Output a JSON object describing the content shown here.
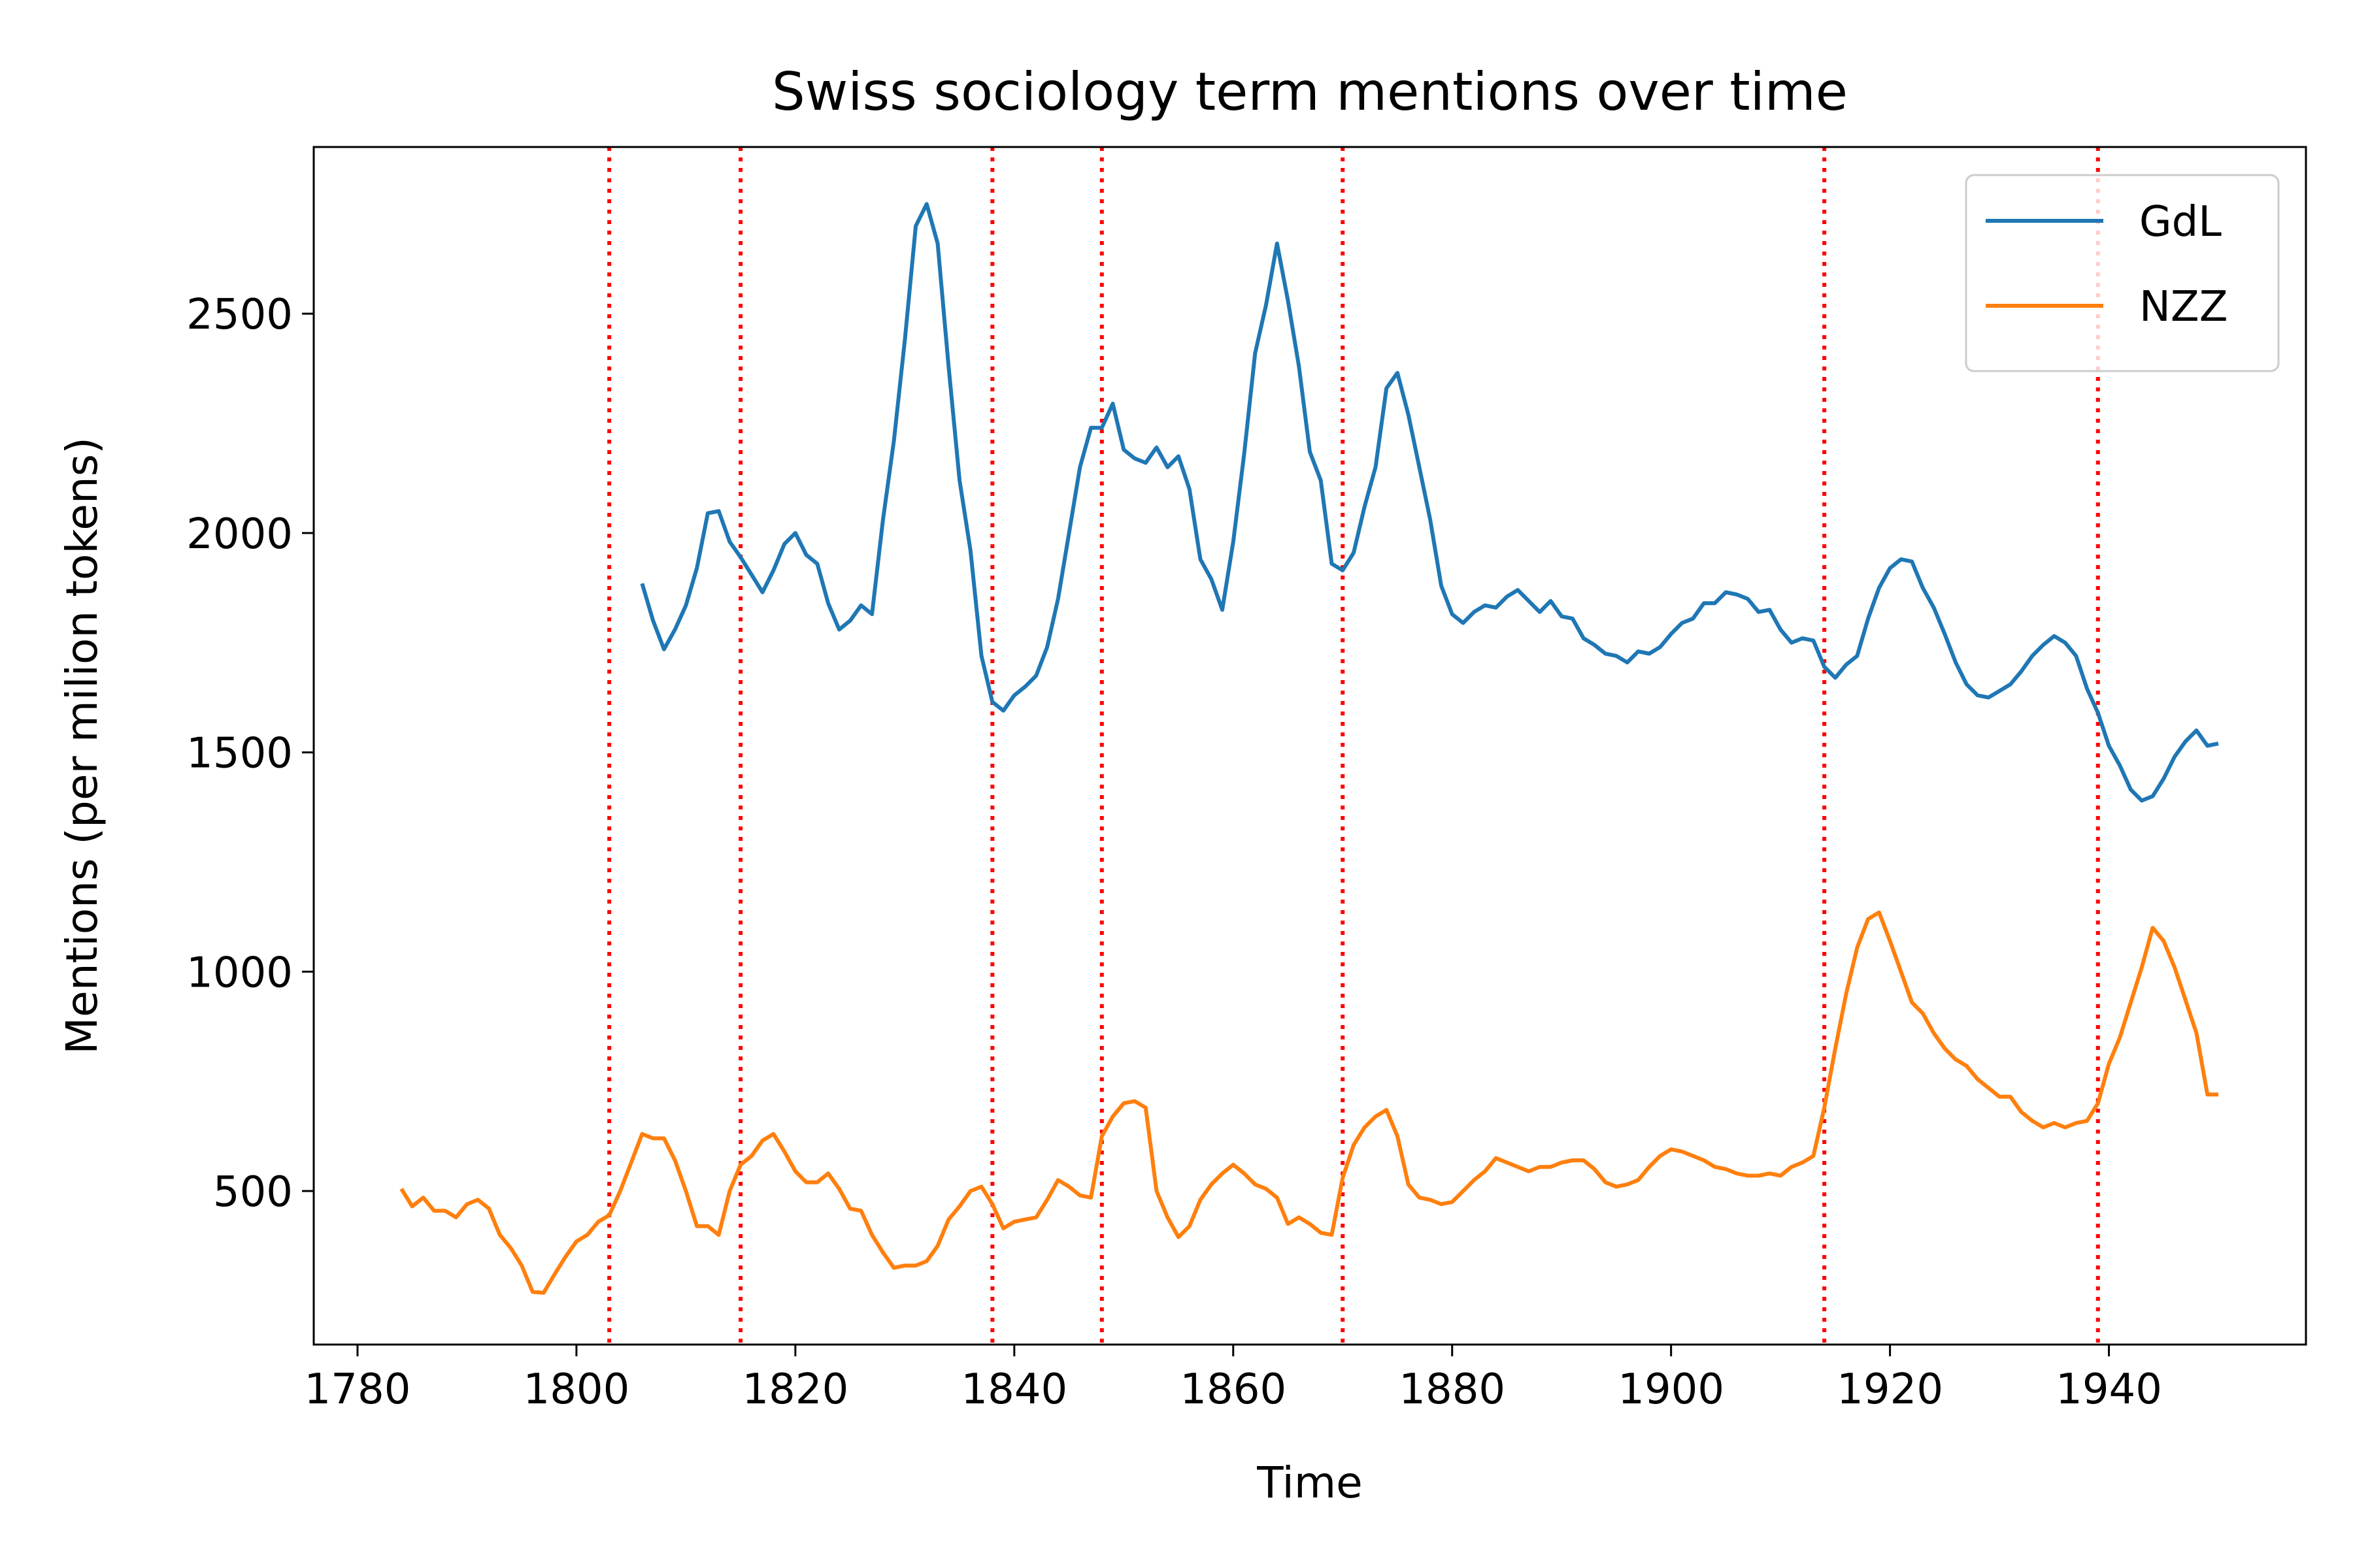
{
  "chart_data": {
    "type": "line",
    "title": "Swiss sociology term mentions over time",
    "xlabel": "Time",
    "ylabel": "Mentions (per milion tokens)",
    "xlim": [
      1776,
      1958
    ],
    "ylim": [
      150,
      2880
    ],
    "xticks": [
      1780,
      1800,
      1820,
      1840,
      1860,
      1880,
      1900,
      1920,
      1940
    ],
    "yticks": [
      500,
      1000,
      1500,
      2000,
      2500
    ],
    "grid": false,
    "legend": "top-right",
    "vlines": {
      "style": "dotted",
      "color": "#ff0000",
      "x": [
        1803,
        1815,
        1838,
        1848,
        1870,
        1914,
        1939
      ]
    },
    "series": [
      {
        "name": "GdL",
        "color": "#1f77b4",
        "x": [
          1806,
          1807,
          1808,
          1809,
          1810,
          1811,
          1812,
          1813,
          1814,
          1815,
          1816,
          1817,
          1818,
          1819,
          1820,
          1821,
          1822,
          1823,
          1824,
          1825,
          1826,
          1827,
          1828,
          1829,
          1830,
          1831,
          1832,
          1833,
          1834,
          1835,
          1836,
          1837,
          1838,
          1839,
          1840,
          1841,
          1842,
          1843,
          1844,
          1845,
          1846,
          1847,
          1848,
          1849,
          1850,
          1851,
          1852,
          1853,
          1854,
          1855,
          1856,
          1857,
          1858,
          1859,
          1860,
          1861,
          1862,
          1863,
          1864,
          1865,
          1866,
          1867,
          1868,
          1869,
          1870,
          1871,
          1872,
          1873,
          1874,
          1875,
          1876,
          1877,
          1878,
          1879,
          1880,
          1881,
          1882,
          1883,
          1884,
          1885,
          1886,
          1887,
          1888,
          1889,
          1890,
          1891,
          1892,
          1893,
          1894,
          1895,
          1896,
          1897,
          1898,
          1899,
          1900,
          1901,
          1902,
          1903,
          1904,
          1905,
          1906,
          1907,
          1908,
          1909,
          1910,
          1911,
          1912,
          1913,
          1914,
          1915,
          1916,
          1917,
          1918,
          1919,
          1920,
          1921,
          1922,
          1923,
          1924,
          1925,
          1926,
          1927,
          1928,
          1929,
          1930,
          1931,
          1932,
          1933,
          1934,
          1935,
          1936,
          1937,
          1938,
          1939,
          1940,
          1941,
          1942,
          1943,
          1944,
          1945,
          1946,
          1947,
          1948,
          1949,
          1950
        ],
        "values": [
          1885,
          1800,
          1735,
          1780,
          1835,
          1920,
          2045,
          2050,
          1980,
          1945,
          1905,
          1865,
          1915,
          1975,
          2000,
          1950,
          1930,
          1840,
          1780,
          1800,
          1835,
          1815,
          2030,
          2210,
          2440,
          2700,
          2750,
          2660,
          2380,
          2120,
          1960,
          1720,
          1615,
          1595,
          1630,
          1650,
          1675,
          1740,
          1850,
          2000,
          2150,
          2240,
          2240,
          2295,
          2190,
          2170,
          2160,
          2195,
          2150,
          2175,
          2100,
          1940,
          1895,
          1825,
          1980,
          2180,
          2410,
          2520,
          2660,
          2530,
          2380,
          2185,
          2120,
          1930,
          1915,
          1955,
          2060,
          2150,
          2330,
          2365,
          2270,
          2150,
          2030,
          1880,
          1815,
          1795,
          1820,
          1835,
          1830,
          1855,
          1870,
          1845,
          1820,
          1845,
          1810,
          1805,
          1760,
          1745,
          1725,
          1720,
          1705,
          1730,
          1725,
          1740,
          1770,
          1795,
          1805,
          1840,
          1840,
          1865,
          1860,
          1850,
          1820,
          1825,
          1780,
          1750,
          1760,
          1755,
          1695,
          1670,
          1700,
          1720,
          1805,
          1875,
          1920,
          1940,
          1935,
          1875,
          1830,
          1770,
          1705,
          1655,
          1630,
          1625,
          1640,
          1655,
          1685,
          1720,
          1745,
          1765,
          1750,
          1720,
          1645,
          1590,
          1515,
          1470,
          1415,
          1390,
          1400,
          1440,
          1490,
          1525,
          1550,
          1515,
          1520
        ]
      },
      {
        "name": "NZZ",
        "color": "#ff7f0e",
        "x": [
          1784,
          1785,
          1786,
          1787,
          1788,
          1789,
          1790,
          1791,
          1792,
          1793,
          1794,
          1795,
          1796,
          1797,
          1798,
          1799,
          1800,
          1801,
          1802,
          1803,
          1804,
          1805,
          1806,
          1807,
          1808,
          1809,
          1810,
          1811,
          1812,
          1813,
          1814,
          1815,
          1816,
          1817,
          1818,
          1819,
          1820,
          1821,
          1822,
          1823,
          1824,
          1825,
          1826,
          1827,
          1828,
          1829,
          1830,
          1831,
          1832,
          1833,
          1834,
          1835,
          1836,
          1837,
          1838,
          1839,
          1840,
          1841,
          1842,
          1843,
          1844,
          1845,
          1846,
          1847,
          1848,
          1849,
          1850,
          1851,
          1852,
          1853,
          1854,
          1855,
          1856,
          1857,
          1858,
          1859,
          1860,
          1861,
          1862,
          1863,
          1864,
          1865,
          1866,
          1867,
          1868,
          1869,
          1870,
          1871,
          1872,
          1873,
          1874,
          1875,
          1876,
          1877,
          1878,
          1879,
          1880,
          1881,
          1882,
          1883,
          1884,
          1885,
          1886,
          1887,
          1888,
          1889,
          1890,
          1891,
          1892,
          1893,
          1894,
          1895,
          1896,
          1897,
          1898,
          1899,
          1900,
          1901,
          1902,
          1903,
          1904,
          1905,
          1906,
          1907,
          1908,
          1909,
          1910,
          1911,
          1912,
          1913,
          1914,
          1915,
          1916,
          1917,
          1918,
          1919,
          1920,
          1921,
          1922,
          1923,
          1924,
          1925,
          1926,
          1927,
          1928,
          1929,
          1930,
          1931,
          1932,
          1933,
          1934,
          1935,
          1936,
          1937,
          1938,
          1939,
          1940,
          1941,
          1942,
          1943,
          1944,
          1945,
          1946,
          1947,
          1948,
          1949,
          1950
        ],
        "values": [
          505,
          465,
          485,
          455,
          455,
          440,
          470,
          480,
          460,
          400,
          370,
          330,
          270,
          268,
          310,
          350,
          385,
          400,
          430,
          445,
          500,
          565,
          630,
          620,
          620,
          570,
          500,
          420,
          420,
          400,
          500,
          560,
          580,
          615,
          630,
          590,
          545,
          520,
          520,
          540,
          505,
          460,
          455,
          400,
          360,
          325,
          330,
          330,
          340,
          375,
          435,
          465,
          500,
          510,
          470,
          415,
          430,
          435,
          440,
          480,
          525,
          510,
          490,
          485,
          625,
          670,
          700,
          705,
          690,
          500,
          440,
          395,
          420,
          480,
          515,
          540,
          560,
          540,
          515,
          505,
          485,
          425,
          440,
          425,
          405,
          400,
          530,
          605,
          645,
          670,
          685,
          625,
          515,
          485,
          480,
          470,
          475,
          500,
          525,
          545,
          575,
          565,
          555,
          545,
          555,
          555,
          565,
          570,
          570,
          550,
          520,
          510,
          515,
          525,
          555,
          580,
          595,
          590,
          580,
          570,
          555,
          550,
          540,
          535,
          535,
          540,
          535,
          555,
          565,
          580,
          690,
          825,
          950,
          1055,
          1120,
          1135,
          1070,
          1000,
          930,
          905,
          860,
          825,
          800,
          785,
          755,
          735,
          715,
          715,
          680,
          660,
          645,
          655,
          645,
          655,
          660,
          700,
          790,
          850,
          930,
          1010,
          1100,
          1070,
          1010,
          935,
          860,
          720,
          720
        ]
      }
    ]
  }
}
